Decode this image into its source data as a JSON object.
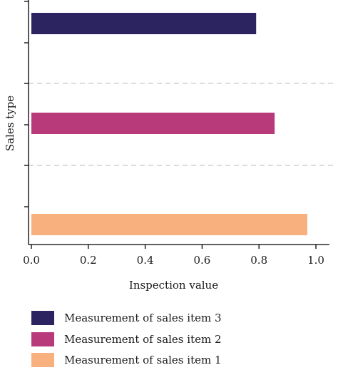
{
  "chart_data": {
    "type": "bar",
    "orientation": "horizontal",
    "xlabel": "Inspection value",
    "ylabel": "Sales type",
    "xlim": [
      0.0,
      1.0
    ],
    "x_ticks": [
      "0.0",
      "0.2",
      "0.4",
      "0.6",
      "0.8",
      "1.0"
    ],
    "series": [
      {
        "name": "Measurement of sales item 3",
        "value": 0.79,
        "color": "#2b2461"
      },
      {
        "name": "Measurement of sales item 2",
        "value": 0.855,
        "color": "#b93a7b"
      },
      {
        "name": "Measurement of sales item 1",
        "value": 0.97,
        "color": "#f8b07f"
      }
    ],
    "grid": "dashed horizontal separators between bars",
    "legend_position": "bottom"
  }
}
